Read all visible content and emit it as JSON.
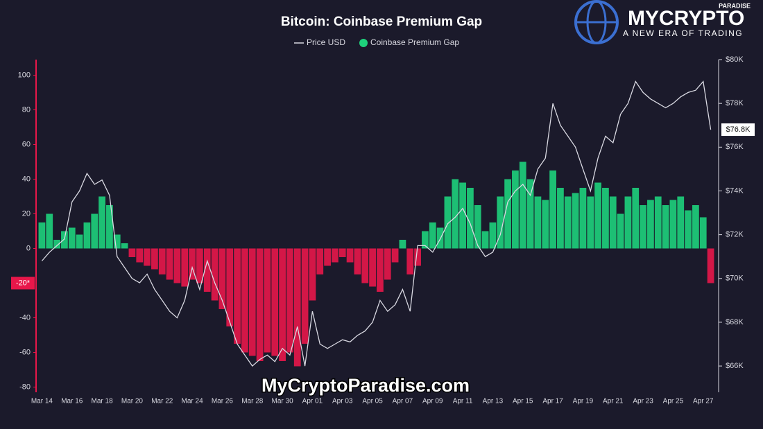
{
  "chart_data": {
    "type": "bar",
    "title": "Bitcoin: Coinbase Premium Gap",
    "categories": [
      "Mar 14",
      null,
      null,
      null,
      "Mar 16",
      null,
      null,
      null,
      "Mar 18",
      null,
      null,
      null,
      "Mar 20",
      null,
      null,
      null,
      "Mar 22",
      null,
      null,
      null,
      "Mar 24",
      null,
      null,
      null,
      "Mar 26",
      null,
      null,
      null,
      "Mar 28",
      null,
      null,
      null,
      "Mar 30",
      null,
      null,
      null,
      "Apr 01",
      null,
      null,
      null,
      "Apr 03",
      null,
      null,
      null,
      "Apr 05",
      null,
      null,
      null,
      "Apr 07",
      null,
      null,
      null,
      "Apr 09",
      null,
      null,
      null,
      "Apr 11",
      null,
      null,
      null,
      "Apr 13",
      null,
      null,
      null,
      "Apr 15",
      null,
      null,
      null,
      "Apr 17",
      null,
      null,
      null,
      "Apr 19",
      null,
      null,
      null,
      "Apr 21",
      null,
      null,
      null,
      "Apr 23",
      null,
      null,
      null,
      "Apr 25",
      null,
      null,
      null,
      "Apr 27",
      null
    ],
    "series": [
      {
        "name": "Coinbase Premium Gap",
        "type": "bar",
        "color": "#1ed27c",
        "negative_color": "#e8174a",
        "values": [
          15,
          20,
          5,
          10,
          12,
          8,
          15,
          20,
          30,
          25,
          8,
          3,
          -5,
          -8,
          -10,
          -12,
          -15,
          -18,
          -20,
          -22,
          -18,
          -20,
          -25,
          -30,
          -35,
          -45,
          -55,
          -60,
          -62,
          -65,
          -60,
          -62,
          -65,
          -60,
          -68,
          -55,
          -30,
          -15,
          -10,
          -8,
          -5,
          -8,
          -15,
          -20,
          -22,
          -25,
          -18,
          -8,
          5,
          -15,
          -10,
          10,
          15,
          12,
          30,
          40,
          38,
          35,
          25,
          10,
          15,
          30,
          40,
          45,
          50,
          40,
          30,
          28,
          45,
          35,
          30,
          32,
          35,
          30,
          38,
          35,
          30,
          20,
          30,
          35,
          25,
          28,
          30,
          25,
          28,
          30,
          22,
          25,
          18,
          -20
        ]
      },
      {
        "name": "Price USD",
        "type": "line",
        "axis": "y2",
        "color": "#d9d9e2",
        "values": [
          70800,
          71200,
          71500,
          71800,
          73500,
          74000,
          74800,
          74300,
          74500,
          73800,
          71000,
          70500,
          70000,
          69800,
          70200,
          69500,
          69000,
          68500,
          68200,
          69000,
          70500,
          69500,
          70800,
          69800,
          69000,
          68000,
          67000,
          66500,
          66000,
          66300,
          66500,
          66200,
          66800,
          66500,
          67800,
          66000,
          68500,
          67000,
          66800,
          67000,
          67200,
          67100,
          67400,
          67600,
          68000,
          69000,
          68500,
          68800,
          69500,
          68500,
          71500,
          71500,
          71200,
          71800,
          72500,
          72800,
          73200,
          72500,
          71500,
          71000,
          71200,
          72000,
          73500,
          74000,
          74300,
          73800,
          75000,
          75500,
          78000,
          77000,
          76500,
          76000,
          75000,
          74000,
          75500,
          76500,
          76200,
          77500,
          78000,
          79000,
          78500,
          78200,
          78000,
          77800,
          78000,
          78300,
          78500,
          78600,
          79000,
          76800
        ]
      }
    ],
    "ylim": [
      -83,
      109
    ],
    "yticks": [
      -80,
      -60,
      -40,
      0,
      20,
      40,
      60,
      80,
      100
    ],
    "y2lim": [
      64800,
      80000
    ],
    "y2ticks": [
      {
        "value": 66000,
        "label": "$66K"
      },
      {
        "value": 68000,
        "label": "$68K"
      },
      {
        "value": 70000,
        "label": "$70K"
      },
      {
        "value": 72000,
        "label": "$72K"
      },
      {
        "value": 74000,
        "label": "$74K"
      },
      {
        "value": 76000,
        "label": "$76K"
      },
      {
        "value": 78000,
        "label": "$78K"
      },
      {
        "value": 80000,
        "label": "$80K"
      }
    ],
    "last_gap_marker": {
      "value": -20,
      "label": "-20*"
    },
    "last_price_marker": {
      "value": 76800,
      "label": "$76.8K"
    },
    "grid": false,
    "legend": "top",
    "branding": {
      "name": "MYCRYPTO",
      "sub": "PARADISE",
      "tagline": "A NEW ERA OF TRADING",
      "watermark": "MyCryptoParadise.com"
    }
  }
}
